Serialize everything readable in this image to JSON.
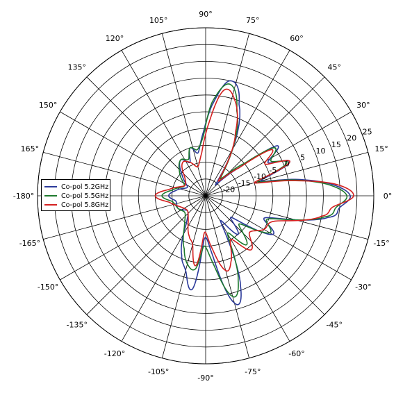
{
  "chart_data": {
    "type": "line",
    "polar": true,
    "title": "",
    "angle_ticks": [
      "0°",
      "15°",
      "30°",
      "45°",
      "60°",
      "75°",
      "90°",
      "105°",
      "120°",
      "135°",
      "150°",
      "165°",
      "-180°",
      "-165°",
      "-150°",
      "-135°",
      "-120°",
      "-105°",
      "-90°",
      "-75°",
      "-60°",
      "-45°",
      "-30°",
      "-15°"
    ],
    "angle_tick_values": [
      0,
      15,
      30,
      45,
      60,
      75,
      90,
      105,
      120,
      135,
      150,
      165,
      180,
      195,
      210,
      225,
      240,
      255,
      270,
      285,
      300,
      315,
      330,
      345
    ],
    "radial_ticks": [
      "-20",
      "-15",
      "-10",
      "-5",
      "0",
      "5",
      "10",
      "15",
      "20",
      "25"
    ],
    "radial_tick_values": [
      -20,
      -15,
      -10,
      -5,
      0,
      5,
      10,
      15,
      20,
      25
    ],
    "rlim": [
      -25,
      25
    ],
    "grid": true,
    "legend": {
      "placement": "left"
    },
    "series": [
      {
        "name": "Co-pol 5.2GHz",
        "color": "#2b3a9a",
        "points": [
          [
            0,
            18
          ],
          [
            5,
            13
          ],
          [
            10,
            3
          ],
          [
            15,
            -8
          ],
          [
            22,
            2
          ],
          [
            28,
            -4
          ],
          [
            35,
            1
          ],
          [
            40,
            -12
          ],
          [
            50,
            -20
          ],
          [
            70,
            4
          ],
          [
            78,
            10
          ],
          [
            86,
            2
          ],
          [
            92,
            -6
          ],
          [
            100,
            -12
          ],
          [
            108,
            -10
          ],
          [
            115,
            -14
          ],
          [
            125,
            -12
          ],
          [
            140,
            -16
          ],
          [
            155,
            -19
          ],
          [
            170,
            -16
          ],
          [
            180,
            -14
          ],
          [
            190,
            -16
          ],
          [
            205,
            -16
          ],
          [
            220,
            -18
          ],
          [
            235,
            -15
          ],
          [
            248,
            -6
          ],
          [
            255,
            -2
          ],
          [
            262,
            3
          ],
          [
            268,
            -12
          ],
          [
            276,
            -8
          ],
          [
            285,
            8
          ],
          [
            291,
            4
          ],
          [
            300,
            -16
          ],
          [
            310,
            -10
          ],
          [
            320,
            -15
          ],
          [
            330,
            -2
          ],
          [
            340,
            -6
          ],
          [
            350,
            12
          ],
          [
            355,
            15
          ]
        ]
      },
      {
        "name": "Co-pol 5.5GHz",
        "color": "#1e7a2e",
        "points": [
          [
            0,
            17
          ],
          [
            5,
            12
          ],
          [
            10,
            2
          ],
          [
            15,
            -9
          ],
          [
            22,
            1
          ],
          [
            28,
            -3
          ],
          [
            35,
            0
          ],
          [
            40,
            -10
          ],
          [
            50,
            -18
          ],
          [
            70,
            2
          ],
          [
            78,
            9
          ],
          [
            86,
            3
          ],
          [
            92,
            -7
          ],
          [
            100,
            -11
          ],
          [
            108,
            -10
          ],
          [
            115,
            -13
          ],
          [
            125,
            -12
          ],
          [
            140,
            -15
          ],
          [
            155,
            -18
          ],
          [
            170,
            -15
          ],
          [
            180,
            -12
          ],
          [
            190,
            -15
          ],
          [
            205,
            -16
          ],
          [
            220,
            -17
          ],
          [
            235,
            -14
          ],
          [
            248,
            -8
          ],
          [
            255,
            -4
          ],
          [
            262,
            -3
          ],
          [
            268,
            -10
          ],
          [
            276,
            -5
          ],
          [
            285,
            6
          ],
          [
            291,
            2
          ],
          [
            300,
            -12
          ],
          [
            310,
            -6
          ],
          [
            320,
            -12
          ],
          [
            330,
            -3
          ],
          [
            340,
            -5
          ],
          [
            350,
            11
          ],
          [
            355,
            14
          ]
        ]
      },
      {
        "name": "Co-pol 5.8GHz",
        "color": "#d42020",
        "points": [
          [
            0,
            19
          ],
          [
            5,
            14
          ],
          [
            10,
            1
          ],
          [
            15,
            -10
          ],
          [
            22,
            2
          ],
          [
            28,
            -5
          ],
          [
            35,
            -1
          ],
          [
            40,
            -12
          ],
          [
            50,
            -19
          ],
          [
            65,
            -4
          ],
          [
            72,
            4
          ],
          [
            80,
            7
          ],
          [
            88,
            -4
          ],
          [
            95,
            -12
          ],
          [
            105,
            -16
          ],
          [
            115,
            -14
          ],
          [
            125,
            -13
          ],
          [
            140,
            -17
          ],
          [
            155,
            -18
          ],
          [
            170,
            -14
          ],
          [
            180,
            -10
          ],
          [
            190,
            -14
          ],
          [
            205,
            -17
          ],
          [
            220,
            -18
          ],
          [
            235,
            -16
          ],
          [
            248,
            -12
          ],
          [
            255,
            -10
          ],
          [
            262,
            -4
          ],
          [
            268,
            -14
          ],
          [
            276,
            -10
          ],
          [
            285,
            -2
          ],
          [
            291,
            -4
          ],
          [
            300,
            -10
          ],
          [
            310,
            -4
          ],
          [
            320,
            -8
          ],
          [
            330,
            -5
          ],
          [
            340,
            -3
          ],
          [
            350,
            10
          ],
          [
            355,
            13
          ]
        ]
      }
    ]
  }
}
